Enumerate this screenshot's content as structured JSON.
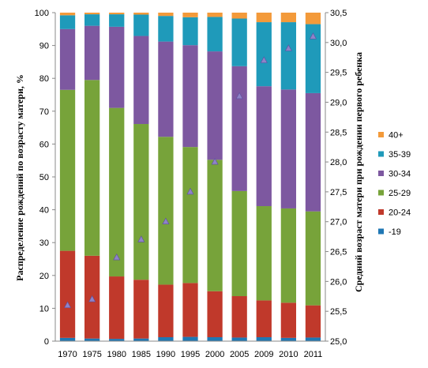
{
  "chart_data": {
    "type": "bar",
    "stacked": true,
    "categories": [
      "1970",
      "1975",
      "1980",
      "1985",
      "1990",
      "1995",
      "2000",
      "2005",
      "2009",
      "2010",
      "2011"
    ],
    "series": [
      {
        "name": "-19",
        "color": "#1f77b4",
        "values": [
          1.0,
          0.8,
          0.7,
          0.8,
          1.2,
          1.3,
          1.2,
          1.1,
          1.2,
          1.0,
          1.1
        ]
      },
      {
        "name": "20-24",
        "color": "#c0392b",
        "values": [
          26.5,
          25.2,
          19.0,
          17.9,
          16.0,
          16.4,
          14.0,
          12.6,
          11.2,
          10.7,
          9.8
        ]
      },
      {
        "name": "25-29",
        "color": "#77a33a",
        "values": [
          49.0,
          53.5,
          51.3,
          47.4,
          45.0,
          41.4,
          40.0,
          32.0,
          28.7,
          28.7,
          28.6
        ]
      },
      {
        "name": "30-34",
        "color": "#7d58a0",
        "values": [
          18.5,
          16.5,
          24.7,
          26.8,
          29.0,
          31.0,
          33.0,
          38.0,
          36.5,
          36.2,
          36.0
        ]
      },
      {
        "name": "35-39",
        "color": "#1f9aba",
        "values": [
          4.2,
          3.5,
          3.8,
          6.5,
          7.8,
          8.5,
          10.5,
          14.5,
          19.5,
          20.5,
          21.0
        ]
      },
      {
        "name": "40+",
        "color": "#f39a3a",
        "values": [
          0.8,
          0.5,
          0.5,
          0.6,
          1.0,
          1.4,
          1.3,
          1.8,
          2.9,
          2.9,
          3.5
        ]
      }
    ],
    "line_series": {
      "axis": "right",
      "marker": "triangle",
      "color": "#8f83c7",
      "values": [
        25.6,
        25.7,
        26.4,
        26.7,
        27.0,
        27.5,
        28.0,
        29.1,
        29.7,
        29.9,
        30.1
      ]
    },
    "ylabel": "Распределение рождений по возрасту матери, %",
    "y2label": "Средний возраст матери при рождении первого ребенка",
    "ylim": [
      0,
      100
    ],
    "y2lim": [
      25.0,
      30.5
    ],
    "yticks": [
      "0",
      "10",
      "20",
      "30",
      "40",
      "50",
      "60",
      "70",
      "80",
      "90",
      "100"
    ],
    "y2ticks": [
      "25,0",
      "25,5",
      "26,0",
      "26,5",
      "27,0",
      "27,5",
      "28,0",
      "28,5",
      "29,0",
      "29,5",
      "30,0",
      "30,5"
    ],
    "legend_position": "right",
    "legend_order": [
      "40+",
      "35-39",
      "30-34",
      "25-29",
      "20-24",
      "-19"
    ],
    "grid": false
  }
}
